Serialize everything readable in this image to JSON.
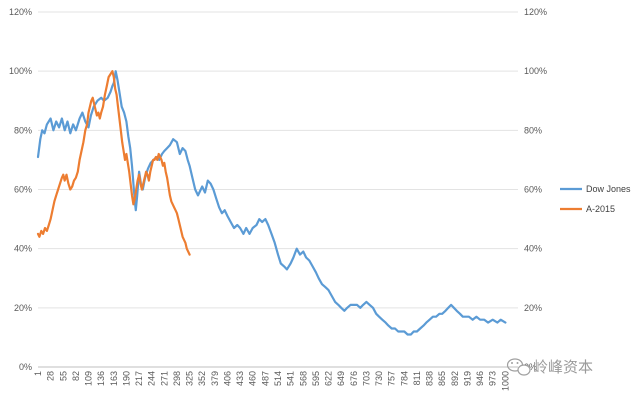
{
  "chart_data": {
    "type": "line",
    "title": "",
    "xlabel": "",
    "ylabel": "",
    "ylim": [
      0,
      120
    ],
    "y_ticks": [
      "0%",
      "20%",
      "40%",
      "60%",
      "80%",
      "100%",
      "120%"
    ],
    "y_tick_values": [
      0,
      20,
      40,
      60,
      80,
      100,
      120
    ],
    "secondary_y_ticks": [
      "0%",
      "20%",
      "40%",
      "60%",
      "80%",
      "100%",
      "120%"
    ],
    "xlim": [
      1,
      1027
    ],
    "x_ticks": [
      "1",
      "28",
      "55",
      "82",
      "109",
      "136",
      "163",
      "190",
      "217",
      "244",
      "271",
      "298",
      "325",
      "352",
      "379",
      "406",
      "433",
      "460",
      "487",
      "514",
      "541",
      "568",
      "595",
      "622",
      "649",
      "676",
      "703",
      "730",
      "757",
      "784",
      "811",
      "838",
      "865",
      "892",
      "919",
      "946",
      "973",
      "1000"
    ],
    "grid": true,
    "legend_position": "right",
    "series": [
      {
        "name": "Dow Jones",
        "color": "#5b9bd5",
        "points": [
          [
            1,
            71
          ],
          [
            6,
            77
          ],
          [
            10,
            80
          ],
          [
            15,
            79
          ],
          [
            20,
            82
          ],
          [
            28,
            84
          ],
          [
            34,
            80
          ],
          [
            40,
            83
          ],
          [
            46,
            81
          ],
          [
            52,
            84
          ],
          [
            58,
            80
          ],
          [
            64,
            83
          ],
          [
            70,
            79
          ],
          [
            76,
            82
          ],
          [
            82,
            80
          ],
          [
            90,
            84
          ],
          [
            96,
            86
          ],
          [
            102,
            83
          ],
          [
            109,
            81
          ],
          [
            114,
            85
          ],
          [
            120,
            88
          ],
          [
            128,
            90
          ],
          [
            136,
            91
          ],
          [
            142,
            90
          ],
          [
            150,
            91
          ],
          [
            156,
            93
          ],
          [
            160,
            95
          ],
          [
            163,
            96
          ],
          [
            167,
            100
          ],
          [
            171,
            97
          ],
          [
            175,
            93
          ],
          [
            180,
            88
          ],
          [
            185,
            86
          ],
          [
            190,
            83
          ],
          [
            194,
            78
          ],
          [
            198,
            74
          ],
          [
            202,
            68
          ],
          [
            205,
            62
          ],
          [
            208,
            56
          ],
          [
            210,
            53
          ],
          [
            213,
            58
          ],
          [
            217,
            66
          ],
          [
            221,
            62
          ],
          [
            225,
            60
          ],
          [
            230,
            64
          ],
          [
            236,
            67
          ],
          [
            242,
            69
          ],
          [
            248,
            70
          ],
          [
            254,
            71
          ],
          [
            260,
            70
          ],
          [
            266,
            72
          ],
          [
            271,
            73
          ],
          [
            277,
            74
          ],
          [
            283,
            75
          ],
          [
            290,
            77
          ],
          [
            298,
            76
          ],
          [
            304,
            72
          ],
          [
            310,
            74
          ],
          [
            316,
            73
          ],
          [
            321,
            70
          ],
          [
            325,
            68
          ],
          [
            331,
            64
          ],
          [
            337,
            60
          ],
          [
            343,
            58
          ],
          [
            352,
            61
          ],
          [
            358,
            59
          ],
          [
            364,
            63
          ],
          [
            370,
            62
          ],
          [
            376,
            60
          ],
          [
            382,
            57
          ],
          [
            388,
            54
          ],
          [
            394,
            52
          ],
          [
            400,
            53
          ],
          [
            406,
            51
          ],
          [
            413,
            49
          ],
          [
            420,
            47
          ],
          [
            427,
            48
          ],
          [
            433,
            47
          ],
          [
            440,
            45
          ],
          [
            446,
            47
          ],
          [
            453,
            45
          ],
          [
            460,
            47
          ],
          [
            468,
            48
          ],
          [
            474,
            50
          ],
          [
            480,
            49
          ],
          [
            487,
            50
          ],
          [
            493,
            48
          ],
          [
            500,
            45
          ],
          [
            507,
            42
          ],
          [
            514,
            38
          ],
          [
            520,
            35
          ],
          [
            527,
            34
          ],
          [
            533,
            33
          ],
          [
            541,
            35
          ],
          [
            547,
            37
          ],
          [
            554,
            40
          ],
          [
            561,
            38
          ],
          [
            568,
            39
          ],
          [
            574,
            37
          ],
          [
            581,
            36
          ],
          [
            588,
            34
          ],
          [
            595,
            32
          ],
          [
            601,
            30
          ],
          [
            608,
            28
          ],
          [
            615,
            27
          ],
          [
            622,
            26
          ],
          [
            629,
            24
          ],
          [
            636,
            22
          ],
          [
            643,
            21
          ],
          [
            649,
            20
          ],
          [
            656,
            19
          ],
          [
            662,
            20
          ],
          [
            669,
            21
          ],
          [
            676,
            21
          ],
          [
            683,
            21
          ],
          [
            690,
            20
          ],
          [
            696,
            21
          ],
          [
            703,
            22
          ],
          [
            710,
            21
          ],
          [
            717,
            20
          ],
          [
            724,
            18
          ],
          [
            730,
            17
          ],
          [
            737,
            16
          ],
          [
            744,
            15
          ],
          [
            750,
            14
          ],
          [
            757,
            13
          ],
          [
            764,
            13
          ],
          [
            771,
            12
          ],
          [
            778,
            12
          ],
          [
            784,
            12
          ],
          [
            791,
            11
          ],
          [
            798,
            11
          ],
          [
            804,
            12
          ],
          [
            811,
            12
          ],
          [
            818,
            13
          ],
          [
            825,
            14
          ],
          [
            831,
            15
          ],
          [
            838,
            16
          ],
          [
            845,
            17
          ],
          [
            852,
            17
          ],
          [
            859,
            18
          ],
          [
            865,
            18
          ],
          [
            872,
            19
          ],
          [
            878,
            20
          ],
          [
            884,
            21
          ],
          [
            890,
            20
          ],
          [
            896,
            19
          ],
          [
            903,
            18
          ],
          [
            909,
            17
          ],
          [
            915,
            17
          ],
          [
            922,
            17
          ],
          [
            930,
            16
          ],
          [
            938,
            17
          ],
          [
            946,
            16
          ],
          [
            955,
            16
          ],
          [
            963,
            15
          ],
          [
            973,
            16
          ],
          [
            983,
            15
          ],
          [
            990,
            16
          ],
          [
            1000,
            15
          ]
        ]
      },
      {
        "name": "A-2015",
        "color": "#ed7d31",
        "points": [
          [
            1,
            45
          ],
          [
            4,
            44
          ],
          [
            8,
            46
          ],
          [
            12,
            45
          ],
          [
            16,
            47
          ],
          [
            20,
            46
          ],
          [
            24,
            48
          ],
          [
            28,
            50
          ],
          [
            32,
            53
          ],
          [
            36,
            56
          ],
          [
            40,
            58
          ],
          [
            44,
            60
          ],
          [
            48,
            62
          ],
          [
            52,
            64
          ],
          [
            55,
            65
          ],
          [
            58,
            63
          ],
          [
            62,
            65
          ],
          [
            66,
            62
          ],
          [
            70,
            60
          ],
          [
            74,
            61
          ],
          [
            78,
            63
          ],
          [
            82,
            64
          ],
          [
            86,
            66
          ],
          [
            90,
            70
          ],
          [
            94,
            73
          ],
          [
            98,
            76
          ],
          [
            102,
            80
          ],
          [
            106,
            82
          ],
          [
            109,
            86
          ],
          [
            112,
            88
          ],
          [
            115,
            90
          ],
          [
            118,
            91
          ],
          [
            121,
            89
          ],
          [
            124,
            87
          ],
          [
            127,
            85
          ],
          [
            130,
            86
          ],
          [
            133,
            84
          ],
          [
            136,
            86
          ],
          [
            140,
            88
          ],
          [
            144,
            92
          ],
          [
            148,
            95
          ],
          [
            152,
            98
          ],
          [
            156,
            99
          ],
          [
            160,
            100
          ],
          [
            163,
            98
          ],
          [
            166,
            94
          ],
          [
            169,
            92
          ],
          [
            172,
            88
          ],
          [
            175,
            84
          ],
          [
            178,
            80
          ],
          [
            181,
            76
          ],
          [
            184,
            73
          ],
          [
            187,
            70
          ],
          [
            190,
            72
          ],
          [
            193,
            69
          ],
          [
            196,
            66
          ],
          [
            199,
            62
          ],
          [
            202,
            58
          ],
          [
            205,
            55
          ],
          [
            208,
            57
          ],
          [
            211,
            60
          ],
          [
            214,
            63
          ],
          [
            217,
            65
          ],
          [
            220,
            62
          ],
          [
            223,
            60
          ],
          [
            226,
            62
          ],
          [
            229,
            64
          ],
          [
            232,
            66
          ],
          [
            235,
            65
          ],
          [
            238,
            63
          ],
          [
            241,
            66
          ],
          [
            244,
            68
          ],
          [
            247,
            70
          ],
          [
            250,
            70
          ],
          [
            253,
            71
          ],
          [
            256,
            70
          ],
          [
            259,
            72
          ],
          [
            262,
            71
          ],
          [
            265,
            70
          ],
          [
            268,
            68
          ],
          [
            271,
            69
          ],
          [
            274,
            66
          ],
          [
            277,
            64
          ],
          [
            280,
            61
          ],
          [
            283,
            58
          ],
          [
            286,
            56
          ],
          [
            289,
            55
          ],
          [
            292,
            54
          ],
          [
            295,
            53
          ],
          [
            298,
            52
          ],
          [
            301,
            50
          ],
          [
            304,
            48
          ],
          [
            307,
            46
          ],
          [
            310,
            44
          ],
          [
            313,
            43
          ],
          [
            316,
            42
          ],
          [
            319,
            40
          ],
          [
            322,
            39
          ],
          [
            325,
            38
          ]
        ]
      }
    ]
  },
  "watermark": {
    "text": "岭峰资本"
  }
}
